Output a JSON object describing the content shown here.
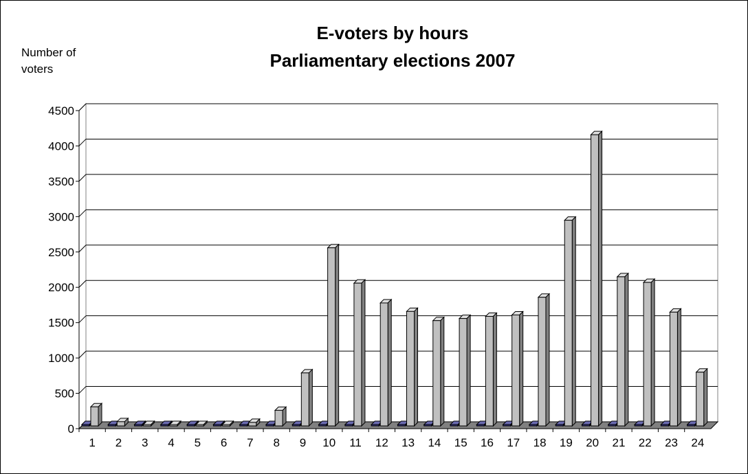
{
  "chart_data": {
    "type": "bar",
    "title": [
      "E-voters by hours",
      "Parliamentary elections 2007"
    ],
    "ylabel": "Number of voters",
    "xlabel": "",
    "ylim": [
      0,
      4500
    ],
    "yticks": [
      0,
      500,
      1000,
      1500,
      2000,
      2500,
      3000,
      3500,
      4000,
      4500
    ],
    "categories": [
      "1",
      "2",
      "3",
      "4",
      "5",
      "6",
      "7",
      "8",
      "9",
      "10",
      "11",
      "12",
      "13",
      "14",
      "15",
      "16",
      "17",
      "18",
      "19",
      "20",
      "21",
      "22",
      "23",
      "24"
    ],
    "series": [
      {
        "values": [
          5,
          5,
          5,
          5,
          5,
          5,
          5,
          5,
          5,
          5,
          5,
          5,
          5,
          5,
          5,
          5,
          5,
          5,
          5,
          5,
          5,
          5,
          5,
          5
        ],
        "color": "#1f1f7a"
      },
      {
        "values": [
          270,
          60,
          15,
          5,
          5,
          5,
          50,
          220,
          750,
          2520,
          2020,
          1740,
          1620,
          1490,
          1520,
          1550,
          1570,
          1820,
          2910,
          4120,
          2110,
          2030,
          1610,
          760
        ],
        "color": "#c0c0c0"
      }
    ],
    "grid": true,
    "legend": "none"
  }
}
